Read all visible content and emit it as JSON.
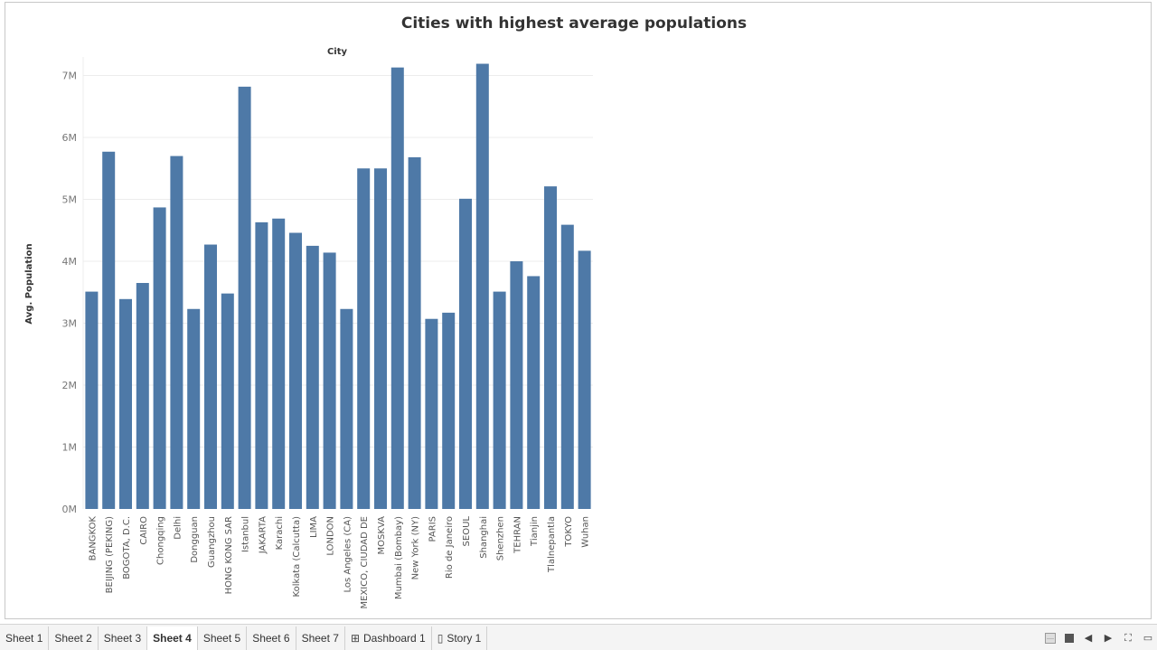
{
  "chart_data": {
    "type": "bar",
    "title": "Cities with highest average populations",
    "column_header": "City",
    "ylabel": "Avg. Population",
    "xlabel": "",
    "ylim": [
      0,
      7300000
    ],
    "yticks": [
      0,
      1000000,
      2000000,
      3000000,
      4000000,
      5000000,
      6000000,
      7000000
    ],
    "ytick_labels": [
      "0M",
      "1M",
      "2M",
      "3M",
      "4M",
      "5M",
      "6M",
      "7M"
    ],
    "categories": [
      "BANGKOK",
      "BEIJING (PEKING)",
      "BOGOTA, D.C.",
      "CAIRO",
      "Chongqing",
      "Delhi",
      "Dongguan",
      "Guangzhou",
      "HONG KONG SAR",
      "Istanbul",
      "JAKARTA",
      "Karachi",
      "Kolkata (Calcutta)",
      "LIMA",
      "LONDON",
      "Los Angeles (CA)",
      "MEXICO, CIUDAD DE",
      "MOSKVA",
      "Mumbai (Bombay)",
      "New York (NY)",
      "PARIS",
      "Rio de Janeiro",
      "SEOUL",
      "Shanghai",
      "Shenzhen",
      "TEHRAN",
      "Tianjin",
      "Tlalnepantla",
      "TOKYO",
      "Wuhan"
    ],
    "values": [
      3510000,
      5770000,
      3390000,
      3650000,
      4870000,
      5700000,
      3230000,
      4270000,
      3480000,
      6820000,
      4630000,
      4690000,
      4460000,
      4250000,
      4140000,
      3230000,
      5500000,
      5500000,
      7130000,
      5680000,
      3070000,
      3170000,
      5010000,
      7190000,
      3510000,
      4000000,
      3760000,
      5210000,
      4590000,
      4170000
    ],
    "bar_color": "#4e79a7",
    "gridlines": true
  },
  "tabs": [
    {
      "label": "Sheet 1",
      "icon": ""
    },
    {
      "label": "Sheet 2",
      "icon": ""
    },
    {
      "label": "Sheet 3",
      "icon": ""
    },
    {
      "label": "Sheet 4",
      "icon": ""
    },
    {
      "label": "Sheet 5",
      "icon": ""
    },
    {
      "label": "Sheet 6",
      "icon": ""
    },
    {
      "label": "Sheet 7",
      "icon": ""
    },
    {
      "label": "Dashboard 1",
      "icon": "dashboard-icon"
    },
    {
      "label": "Story 1",
      "icon": "story-icon"
    }
  ],
  "active_tab": "Sheet 4"
}
